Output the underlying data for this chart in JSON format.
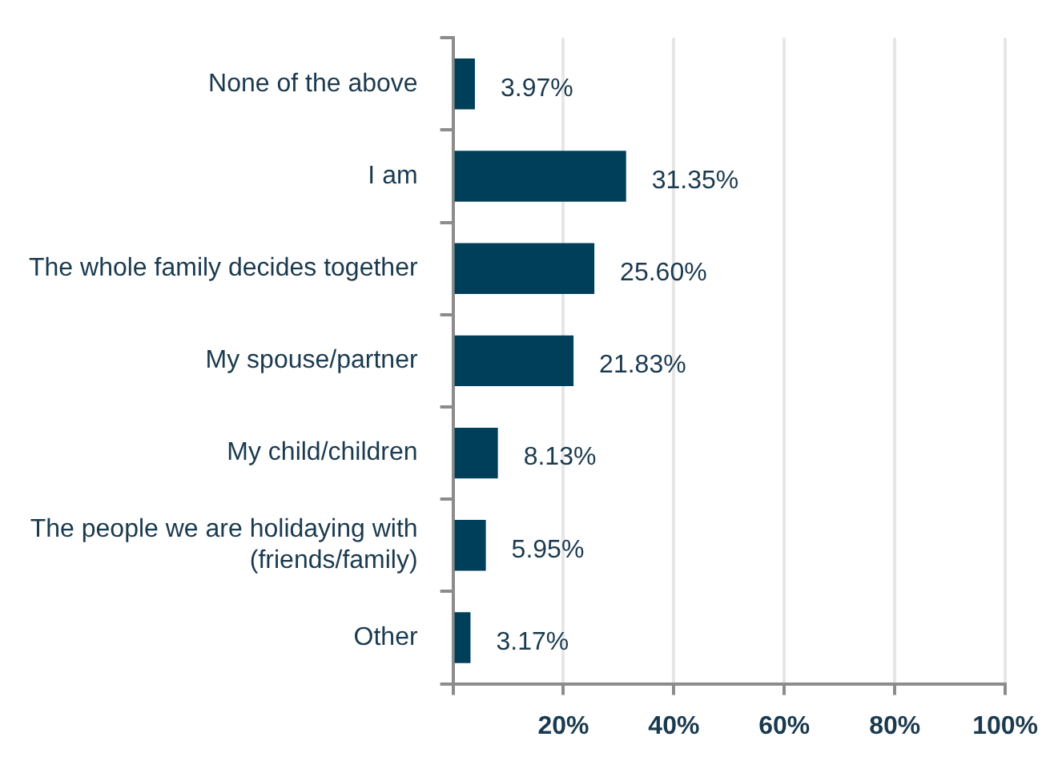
{
  "chart_data": {
    "type": "bar",
    "orientation": "horizontal",
    "categories": [
      "None of the above",
      "I am",
      "The whole family decides together",
      "My spouse/partner",
      "My child/children",
      "The people we are holidaying with (friends/family)",
      "Other"
    ],
    "values": [
      3.97,
      31.35,
      25.6,
      21.83,
      8.13,
      5.95,
      3.17
    ],
    "value_labels": [
      "3.97%",
      "31.35%",
      "25.60%",
      "21.83%",
      "8.13%",
      "5.95%",
      "3.17%"
    ],
    "color": "#003f5a",
    "xlim": [
      0,
      100
    ],
    "xticks": [
      {
        "value": 0,
        "label": null
      },
      {
        "value": 20,
        "label": "20%"
      },
      {
        "value": 40,
        "label": "40%"
      },
      {
        "value": 60,
        "label": "60%"
      },
      {
        "value": 80,
        "label": "80%"
      },
      {
        "value": 100,
        "label": "100%"
      }
    ],
    "grid": "x",
    "legend": false
  }
}
